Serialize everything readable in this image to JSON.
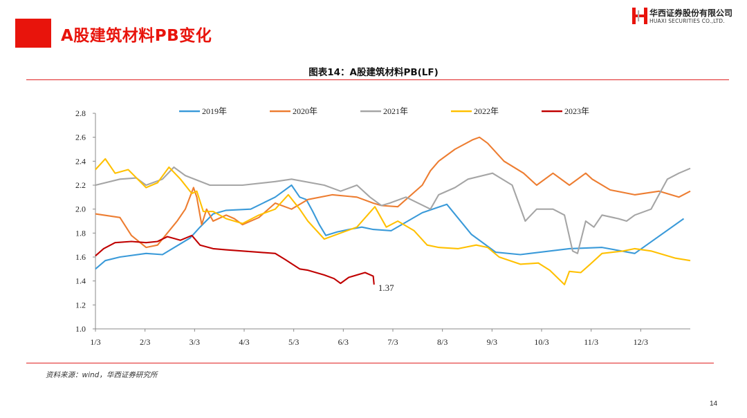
{
  "header": {
    "page_title": "A股建筑材料PB变化"
  },
  "logo": {
    "name_cn": "华西证券股份有限公司",
    "name_en": "HUAXI SECURITIES CO.,LTD."
  },
  "footer": {
    "source": "资料来源：wind，华西证券研究所",
    "page_number": "14"
  },
  "colors": {
    "accent": "#e8140c",
    "2019": "#3a9ad9",
    "2020": "#ed7d31",
    "2021": "#a5a5a5",
    "2022": "#ffc000",
    "2023": "#c00000"
  },
  "chart_data": {
    "type": "line",
    "title": "图表14：A股建筑材料PB(LF)",
    "xlabel": "",
    "ylabel": "",
    "x_tick_labels": [
      "1/3",
      "2/3",
      "3/3",
      "4/3",
      "5/3",
      "6/3",
      "7/3",
      "8/3",
      "9/3",
      "10/3",
      "11/3",
      "12/3"
    ],
    "x_range_days": [
      0,
      364
    ],
    "ylim": [
      1.0,
      2.8
    ],
    "y_ticks": [
      "1.0",
      "1.2",
      "1.4",
      "1.6",
      "1.8",
      "2.0",
      "2.2",
      "2.4",
      "2.6",
      "2.8"
    ],
    "legend_position": "top",
    "grid": false,
    "annotation": {
      "text": "1.37",
      "series": "2023年"
    },
    "series": [
      {
        "name": "2019年",
        "color": "#3a9ad9",
        "x": [
          0,
          6,
          15,
          31,
          41,
          58,
          64,
          72,
          80,
          95,
          110,
          120,
          125,
          129,
          133,
          137,
          141,
          148,
          155,
          163,
          170,
          181,
          200,
          215,
          230,
          245,
          260,
          290,
          310,
          330,
          360
        ],
        "y": [
          1.5,
          1.57,
          1.6,
          1.63,
          1.62,
          1.76,
          1.85,
          1.96,
          1.99,
          2.0,
          2.1,
          2.2,
          2.1,
          2.08,
          1.98,
          1.87,
          1.78,
          1.81,
          1.83,
          1.85,
          1.83,
          1.82,
          1.97,
          2.04,
          1.79,
          1.64,
          1.62,
          1.67,
          1.68,
          1.63,
          1.92
        ]
      },
      {
        "name": "2020年",
        "color": "#ed7d31",
        "x": [
          0,
          15,
          22,
          31,
          38,
          50,
          55,
          60,
          62,
          65,
          68,
          72,
          80,
          85,
          90,
          100,
          110,
          120,
          130,
          145,
          160,
          170,
          175,
          185,
          200,
          205,
          210,
          220,
          231,
          235,
          240,
          250,
          262,
          270,
          280,
          290,
          300,
          304,
          315,
          330,
          345,
          357,
          364
        ],
        "y": [
          1.96,
          1.93,
          1.78,
          1.68,
          1.7,
          1.9,
          2.0,
          2.18,
          2.1,
          1.87,
          2.0,
          1.9,
          1.95,
          1.92,
          1.87,
          1.93,
          2.05,
          2.0,
          2.08,
          2.12,
          2.1,
          2.05,
          2.03,
          2.02,
          2.2,
          2.32,
          2.4,
          2.5,
          2.58,
          2.6,
          2.55,
          2.4,
          2.3,
          2.2,
          2.3,
          2.2,
          2.3,
          2.25,
          2.16,
          2.12,
          2.15,
          2.1,
          2.15
        ]
      },
      {
        "name": "2021年",
        "color": "#a5a5a5",
        "x": [
          0,
          15,
          25,
          31,
          41,
          48,
          55,
          70,
          90,
          110,
          120,
          140,
          150,
          160,
          168,
          175,
          180,
          190,
          205,
          210,
          220,
          228,
          243,
          255,
          263,
          270,
          280,
          287,
          292,
          295,
          300,
          305,
          310,
          320,
          325,
          330,
          340,
          350,
          357,
          364
        ],
        "y": [
          2.2,
          2.25,
          2.26,
          2.2,
          2.25,
          2.35,
          2.28,
          2.2,
          2.2,
          2.23,
          2.25,
          2.2,
          2.15,
          2.2,
          2.1,
          2.03,
          2.05,
          2.1,
          2.0,
          2.12,
          2.18,
          2.25,
          2.3,
          2.2,
          1.9,
          2.0,
          2.0,
          1.95,
          1.65,
          1.63,
          1.9,
          1.85,
          1.95,
          1.92,
          1.9,
          1.95,
          2.0,
          2.25,
          2.3,
          2.34
        ]
      },
      {
        "name": "2022年",
        "color": "#ffc000",
        "x": [
          0,
          6,
          12,
          20,
          31,
          38,
          45,
          52,
          59,
          62,
          66,
          72,
          80,
          90,
          100,
          110,
          118,
          125,
          130,
          140,
          150,
          160,
          171,
          178,
          185,
          195,
          203,
          210,
          222,
          233,
          240,
          247,
          260,
          271,
          278,
          287,
          290,
          297,
          302,
          310,
          323,
          330,
          340,
          355,
          364
        ],
        "y": [
          2.33,
          2.42,
          2.3,
          2.33,
          2.18,
          2.22,
          2.35,
          2.25,
          2.13,
          2.15,
          1.98,
          1.98,
          1.92,
          1.88,
          1.95,
          2.0,
          2.12,
          2.0,
          1.9,
          1.75,
          1.8,
          1.85,
          2.02,
          1.85,
          1.9,
          1.82,
          1.7,
          1.68,
          1.67,
          1.7,
          1.68,
          1.6,
          1.54,
          1.55,
          1.49,
          1.37,
          1.48,
          1.47,
          1.53,
          1.63,
          1.65,
          1.67,
          1.65,
          1.59,
          1.57
        ]
      },
      {
        "name": "2023年",
        "color": "#c00000",
        "x": [
          0,
          5,
          12,
          22,
          31,
          38,
          44,
          52,
          59,
          64,
          72,
          80,
          90,
          100,
          110,
          116,
          125,
          130,
          140,
          146,
          150,
          155,
          165,
          170,
          170.5
        ],
        "y": [
          1.61,
          1.67,
          1.72,
          1.73,
          1.72,
          1.73,
          1.77,
          1.74,
          1.78,
          1.7,
          1.67,
          1.66,
          1.65,
          1.64,
          1.63,
          1.58,
          1.5,
          1.49,
          1.45,
          1.42,
          1.38,
          1.43,
          1.47,
          1.44,
          1.37
        ]
      }
    ]
  }
}
